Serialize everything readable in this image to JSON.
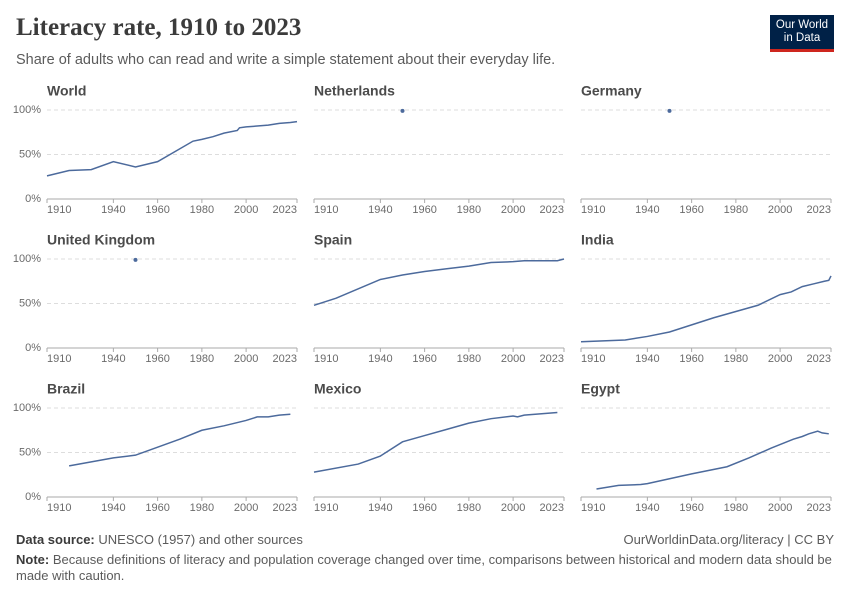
{
  "title": "Literacy rate, 1910 to 2023",
  "subtitle": "Share of adults who can read and write a simple statement about their everyday life.",
  "logo": [
    "Our World",
    "in Data"
  ],
  "source_label": "Data source:",
  "source": "UNESCO (1957) and other sources",
  "license": "OurWorldinData.org/literacy | CC BY",
  "note_label": "Note:",
  "note": "Because definitions of literacy and population coverage changed over time, comparisons between historical and modern data should be made with caution.",
  "chart_data": [
    {
      "type": "line",
      "title": "World",
      "color": "#4c6a9c",
      "xlim": [
        1910,
        2023
      ],
      "ylim": [
        0,
        100
      ],
      "xticks": [
        1910,
        1940,
        1960,
        1980,
        2000,
        2023
      ],
      "yticks": [
        {
          "value": 0,
          "label": "0%"
        },
        {
          "value": 50,
          "label": "50%"
        },
        {
          "value": 100,
          "label": "100%"
        }
      ],
      "grid": true,
      "x": [
        1910,
        1920,
        1930,
        1940,
        1950,
        1960,
        1976,
        1980,
        1985,
        1990,
        1996,
        1997,
        2000,
        2005,
        2010,
        2015,
        2020,
        2023
      ],
      "values": [
        26,
        32,
        33,
        42,
        36,
        42,
        65,
        67,
        70,
        74,
        77,
        80,
        81,
        82,
        83,
        85,
        86,
        87
      ]
    },
    {
      "type": "line",
      "title": "Netherlands",
      "color": "#4c6a9c",
      "xlim": [
        1910,
        2023
      ],
      "ylim": [
        0,
        100
      ],
      "xticks": [
        1910,
        1940,
        1960,
        1980,
        2000,
        2023
      ],
      "yticks": [
        0,
        50,
        100
      ],
      "grid": true,
      "x": [
        1950
      ],
      "values": [
        99
      ]
    },
    {
      "type": "line",
      "title": "Germany",
      "color": "#4c6a9c",
      "xlim": [
        1910,
        2023
      ],
      "ylim": [
        0,
        100
      ],
      "xticks": [
        1910,
        1940,
        1960,
        1980,
        2000,
        2023
      ],
      "yticks": [
        0,
        50,
        100
      ],
      "grid": true,
      "x": [
        1950
      ],
      "values": [
        99
      ]
    },
    {
      "type": "line",
      "title": "United Kingdom",
      "color": "#4c6a9c",
      "xlim": [
        1910,
        2023
      ],
      "ylim": [
        0,
        100
      ],
      "xticks": [
        1910,
        1940,
        1960,
        1980,
        2000,
        2023
      ],
      "yticks": [
        {
          "value": 0,
          "label": "0%"
        },
        {
          "value": 50,
          "label": "50%"
        },
        {
          "value": 100,
          "label": "100%"
        }
      ],
      "grid": true,
      "x": [
        1950
      ],
      "values": [
        99
      ]
    },
    {
      "type": "line",
      "title": "Spain",
      "color": "#4c6a9c",
      "xlim": [
        1910,
        2023
      ],
      "ylim": [
        0,
        100
      ],
      "xticks": [
        1910,
        1940,
        1960,
        1980,
        2000,
        2023
      ],
      "yticks": [
        0,
        50,
        100
      ],
      "grid": true,
      "x": [
        1910,
        1920,
        1940,
        1950,
        1960,
        1970,
        1980,
        1990,
        2000,
        2005,
        2010,
        2020,
        2023
      ],
      "values": [
        48,
        56,
        77,
        82,
        86,
        89,
        92,
        96,
        97,
        98,
        98,
        98,
        100
      ]
    },
    {
      "type": "line",
      "title": "India",
      "color": "#4c6a9c",
      "xlim": [
        1910,
        2023
      ],
      "ylim": [
        0,
        100
      ],
      "xticks": [
        1910,
        1940,
        1960,
        1980,
        2000,
        2023
      ],
      "yticks": [
        0,
        50,
        100
      ],
      "grid": true,
      "x": [
        1910,
        1920,
        1930,
        1940,
        1950,
        1960,
        1970,
        1980,
        1990,
        2000,
        2005,
        2010,
        2015,
        2020,
        2022,
        2023
      ],
      "values": [
        7,
        8,
        9,
        13,
        18,
        26,
        34,
        41,
        48,
        60,
        63,
        69,
        72,
        75,
        76,
        81
      ]
    },
    {
      "type": "line",
      "title": "Brazil",
      "color": "#4c6a9c",
      "xlim": [
        1910,
        2023
      ],
      "ylim": [
        0,
        100
      ],
      "xticks": [
        1910,
        1940,
        1960,
        1980,
        2000,
        2023
      ],
      "yticks": [
        {
          "value": 0,
          "label": "0%"
        },
        {
          "value": 50,
          "label": "50%"
        },
        {
          "value": 100,
          "label": "100%"
        }
      ],
      "grid": true,
      "x": [
        1920,
        1940,
        1950,
        1960,
        1970,
        1980,
        1990,
        2000,
        2005,
        2010,
        2015,
        2020
      ],
      "values": [
        35,
        44,
        47,
        56,
        65,
        75,
        80,
        86,
        90,
        90,
        92,
        93
      ]
    },
    {
      "type": "line",
      "title": "Mexico",
      "color": "#4c6a9c",
      "xlim": [
        1910,
        2023
      ],
      "ylim": [
        0,
        100
      ],
      "xticks": [
        1910,
        1940,
        1960,
        1980,
        2000,
        2023
      ],
      "yticks": [
        0,
        50,
        100
      ],
      "grid": true,
      "x": [
        1910,
        1930,
        1940,
        1950,
        1960,
        1970,
        1980,
        1990,
        2000,
        2002,
        2005,
        2010,
        2015,
        2020
      ],
      "values": [
        28,
        37,
        46,
        62,
        69,
        76,
        83,
        88,
        91,
        90,
        92,
        93,
        94,
        95
      ]
    },
    {
      "type": "line",
      "title": "Egypt",
      "color": "#4c6a9c",
      "xlim": [
        1910,
        2023
      ],
      "ylim": [
        0,
        100
      ],
      "xticks": [
        1910,
        1940,
        1960,
        1980,
        2000,
        2023
      ],
      "yticks": [
        0,
        50,
        100
      ],
      "grid": true,
      "x": [
        1917,
        1927,
        1937,
        1940,
        1960,
        1976,
        1986,
        1996,
        2006,
        2010,
        2013,
        2017,
        2019,
        2022
      ],
      "values": [
        9,
        13,
        14,
        15,
        26,
        34,
        44,
        55,
        65,
        68,
        71,
        74,
        72,
        71
      ]
    }
  ]
}
